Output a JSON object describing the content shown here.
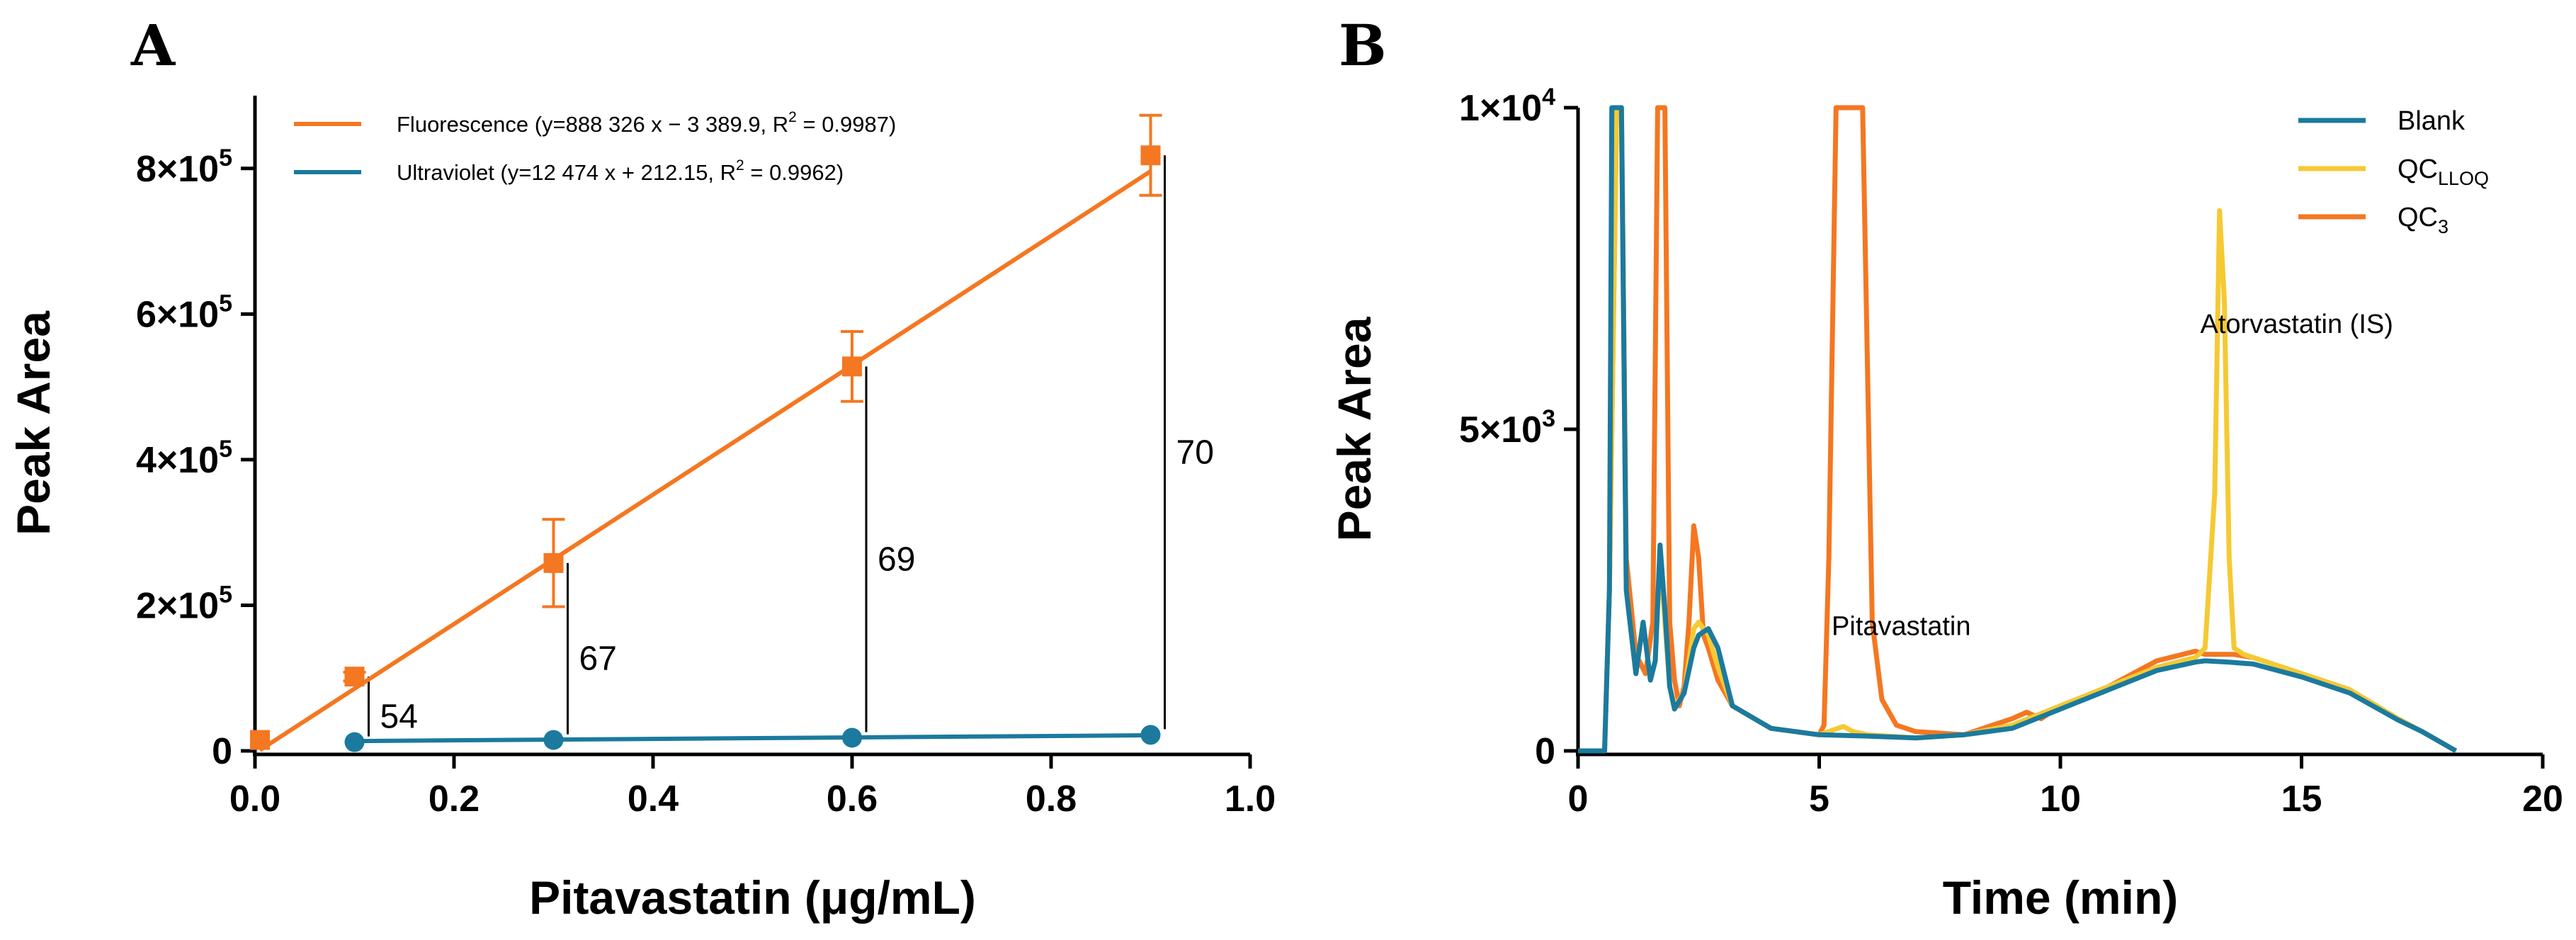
{
  "chart_data": [
    {
      "panel": "A",
      "type": "scatter",
      "xlabel": "Pitavastatin (μg/mL)",
      "ylabel": "Peak Area",
      "xlim": [
        0,
        1.0
      ],
      "ylim": [
        0,
        900000
      ],
      "xticks": [
        0,
        0.2,
        0.4,
        0.6,
        0.8,
        1.0
      ],
      "xtick_labels": [
        "0.0",
        "0.2",
        "0.4",
        "0.6",
        "0.8",
        "1.0"
      ],
      "yticks": [
        0,
        200000,
        400000,
        600000,
        800000
      ],
      "ytick_labels": [
        {
          "base": "0",
          "exp": ""
        },
        {
          "base": "2×10",
          "exp": "5"
        },
        {
          "base": "4×10",
          "exp": "5"
        },
        {
          "base": "6×10",
          "exp": "5"
        },
        {
          "base": "8×10",
          "exp": "5"
        }
      ],
      "series": [
        {
          "name": "Fluorescence",
          "legend_prefix": "Fluorescence (y=888 326 x − 3 389.9,  R",
          "legend_sup": "2",
          "legend_suffix": " = 0.9987)",
          "color": "#F47721",
          "marker": "square",
          "x": [
            0.005,
            0.1,
            0.3,
            0.6,
            0.9
          ],
          "y": [
            15000,
            102000,
            258000,
            528000,
            818000
          ],
          "error": [
            0,
            6000,
            60000,
            48000,
            55000
          ],
          "fit": {
            "slope": 888326,
            "intercept": -3389.9
          }
        },
        {
          "name": "Ultraviolet",
          "legend_prefix": "Ultraviolet (y=12 474 x + 212.15, R",
          "legend_sup": "2",
          "legend_suffix": " = 0.9962)",
          "color": "#1B7A9E",
          "marker": "circle",
          "x": [
            0.1,
            0.3,
            0.6,
            0.9
          ],
          "y": [
            12000,
            15000,
            18000,
            22000
          ],
          "fit": {
            "slope": 12474,
            "intercept": 212.15
          }
        }
      ],
      "annotations": [
        {
          "text": "54",
          "x": 0.1
        },
        {
          "text": "67",
          "x": 0.3
        },
        {
          "text": "69",
          "x": 0.6
        },
        {
          "text": "70",
          "x": 0.9
        }
      ]
    },
    {
      "panel": "B",
      "type": "line",
      "xlabel": "Time (min)",
      "ylabel": "Peak Area",
      "xlim": [
        0,
        20
      ],
      "ylim": [
        0,
        10000
      ],
      "xticks": [
        0,
        5,
        10,
        15,
        20
      ],
      "xtick_labels": [
        "0",
        "5",
        "10",
        "15",
        "20"
      ],
      "yticks": [
        0,
        5000,
        10000
      ],
      "ytick_labels": [
        {
          "base": "0",
          "exp": ""
        },
        {
          "base": "5×10",
          "exp": "3"
        },
        {
          "base": "1×10",
          "exp": "4"
        }
      ],
      "series": [
        {
          "name": "QC3",
          "legend_base": "QC",
          "legend_sub": "3",
          "color": "#F47721",
          "x": [
            0,
            0.55,
            0.65,
            0.8,
            0.9,
            1.0,
            1.2,
            1.4,
            1.55,
            1.65,
            1.75,
            1.8,
            1.9,
            2.0,
            2.1,
            2.2,
            2.3,
            2.4,
            2.5,
            2.6,
            2.7,
            2.9,
            3.2,
            4.0,
            5.0,
            5.1,
            5.2,
            5.35,
            5.5,
            5.7,
            5.9,
            6.0,
            6.1,
            6.3,
            6.6,
            7.0,
            8.0,
            9.0,
            9.3,
            9.6,
            10.0,
            11.0,
            12.0,
            12.8,
            13.0,
            13.3,
            13.6,
            14.0,
            15.0,
            16.0,
            17.0,
            17.5,
            18.2
          ],
          "y": [
            0,
            0,
            2500,
            10000,
            10000,
            3000,
            1500,
            1200,
            2000,
            10000,
            10000,
            10000,
            2000,
            1100,
            700,
            1000,
            2000,
            3500,
            3000,
            1800,
            1600,
            1100,
            700,
            350,
            250,
            400,
            3000,
            10000,
            10000,
            10000,
            10000,
            6000,
            2000,
            800,
            400,
            300,
            250,
            500,
            600,
            500,
            700,
            1000,
            1400,
            1550,
            1500,
            1500,
            1500,
            1450,
            1200,
            950,
            500,
            300,
            0
          ]
        },
        {
          "name": "QCLLOQ",
          "legend_base": "QC",
          "legend_sub": "LLOQ",
          "color": "#F5C933",
          "x": [
            0,
            0.55,
            0.65,
            0.8,
            0.9,
            1.0,
            1.2,
            1.35,
            1.5,
            1.6,
            1.7,
            1.8,
            1.9,
            2.0,
            2.2,
            2.4,
            2.5,
            2.7,
            2.9,
            3.2,
            4.0,
            5.0,
            5.5,
            5.7,
            6.0,
            7.0,
            8.0,
            9.0,
            10.0,
            11.0,
            12.0,
            12.8,
            13.0,
            13.2,
            13.3,
            13.4,
            13.5,
            13.6,
            13.8,
            14.0,
            15.0,
            16.0,
            17.0,
            17.5,
            18.2
          ],
          "y": [
            0,
            0,
            2500,
            10000,
            10000,
            2500,
            1200,
            2000,
            1100,
            1400,
            3000,
            2000,
            1000,
            700,
            900,
            1900,
            2000,
            1800,
            1300,
            700,
            350,
            250,
            380,
            300,
            250,
            200,
            250,
            400,
            700,
            1000,
            1300,
            1450,
            1600,
            4000,
            8400,
            7000,
            3000,
            1600,
            1500,
            1450,
            1200,
            950,
            500,
            300,
            0
          ]
        },
        {
          "name": "Blank",
          "legend_base": "Blank",
          "legend_sub": "",
          "color": "#1B7A9E",
          "x": [
            0,
            0.55,
            0.65,
            0.7,
            0.8,
            0.9,
            1.0,
            1.2,
            1.35,
            1.5,
            1.6,
            1.7,
            1.8,
            1.9,
            2.0,
            2.2,
            2.4,
            2.5,
            2.7,
            2.9,
            3.2,
            4.0,
            5.0,
            6.0,
            7.0,
            8.0,
            9.0,
            10.0,
            11.0,
            12.0,
            12.8,
            13.0,
            13.5,
            14.0,
            15.0,
            16.0,
            17.0,
            17.5,
            18.2
          ],
          "y": [
            0,
            0,
            2500,
            10000,
            10000,
            10000,
            2500,
            1200,
            2000,
            1100,
            1400,
            3200,
            2200,
            1000,
            650,
            900,
            1600,
            1800,
            1900,
            1600,
            700,
            350,
            250,
            230,
            200,
            250,
            350,
            650,
            950,
            1250,
            1380,
            1400,
            1380,
            1350,
            1150,
            900,
            480,
            300,
            0
          ]
        }
      ],
      "legend_order": [
        "Blank",
        "QCLLOQ",
        "QC3"
      ],
      "annotations": [
        {
          "text": "Pitavastatin",
          "x": 6.7,
          "y": 1800
        },
        {
          "text": "Atorvastatin (IS)",
          "x": 14.9,
          "y": 6500
        }
      ]
    }
  ],
  "panel_labels": {
    "a": "A",
    "b": "B"
  }
}
